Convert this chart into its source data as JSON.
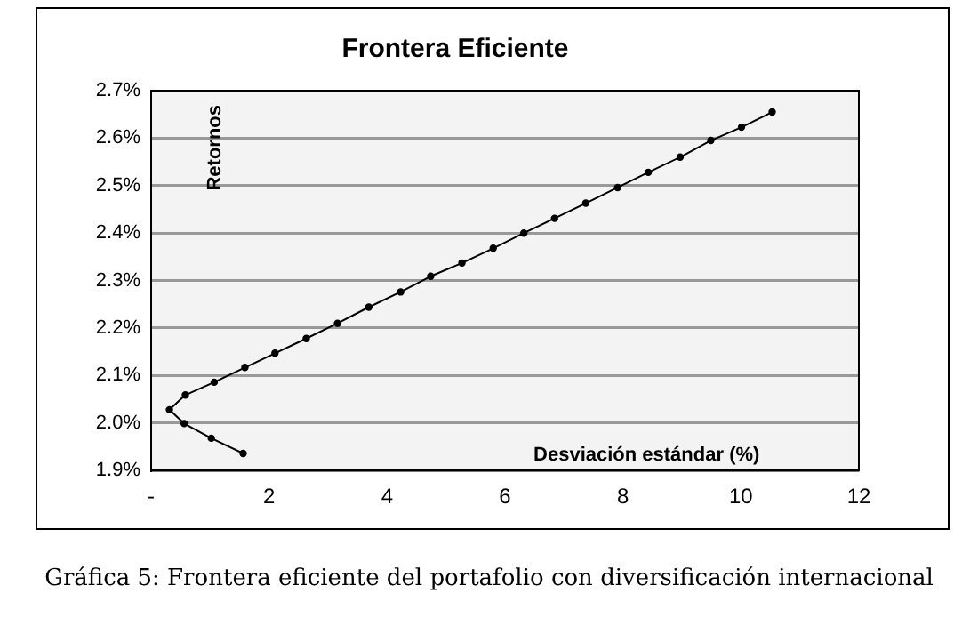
{
  "chart_data": {
    "type": "line",
    "title": "Frontera Eficiente",
    "xlabel": "Desviación estándar (%)",
    "ylabel": "Retornos",
    "annotations": [
      "Gráfica 5: Frontera eficiente del portafolio con diversificación internacional"
    ],
    "series": [
      {
        "color": "#000000",
        "x": [
          1.56,
          1.02,
          0.56,
          0.31,
          0.58,
          1.07,
          1.59,
          2.1,
          2.63,
          3.16,
          3.69,
          4.23,
          4.74,
          5.27,
          5.8,
          6.32,
          6.84,
          7.37,
          7.91,
          8.43,
          8.97,
          9.49,
          10.01,
          10.53
        ],
        "values": [
          1.936,
          1.968,
          1.999,
          2.028,
          2.059,
          2.086,
          2.117,
          2.147,
          2.178,
          2.21,
          2.244,
          2.276,
          2.309,
          2.337,
          2.368,
          2.4,
          2.431,
          2.463,
          2.496,
          2.528,
          2.56,
          2.595,
          2.623,
          2.655
        ]
      }
    ],
    "xlim": [
      0,
      12
    ],
    "xticks": [
      {
        "value": 0,
        "label": "-"
      },
      2,
      4,
      6,
      8,
      10,
      12
    ],
    "ylim": [
      1.9,
      2.7
    ],
    "yticks": [
      {
        "value": 1.9,
        "label": "1.9%"
      },
      {
        "value": 2.0,
        "label": "2.0%"
      },
      {
        "value": 2.1,
        "label": "2.1%"
      },
      {
        "value": 2.2,
        "label": "2.2%"
      },
      {
        "value": 2.3,
        "label": "2.3%"
      },
      {
        "value": 2.4,
        "label": "2.4%"
      },
      {
        "value": 2.5,
        "label": "2.5%"
      },
      {
        "value": 2.6,
        "label": "2.6%"
      },
      {
        "value": 2.7,
        "label": "2.7%"
      }
    ],
    "grid": "y",
    "legend": false,
    "marker": "circle",
    "line_style": "solid"
  }
}
